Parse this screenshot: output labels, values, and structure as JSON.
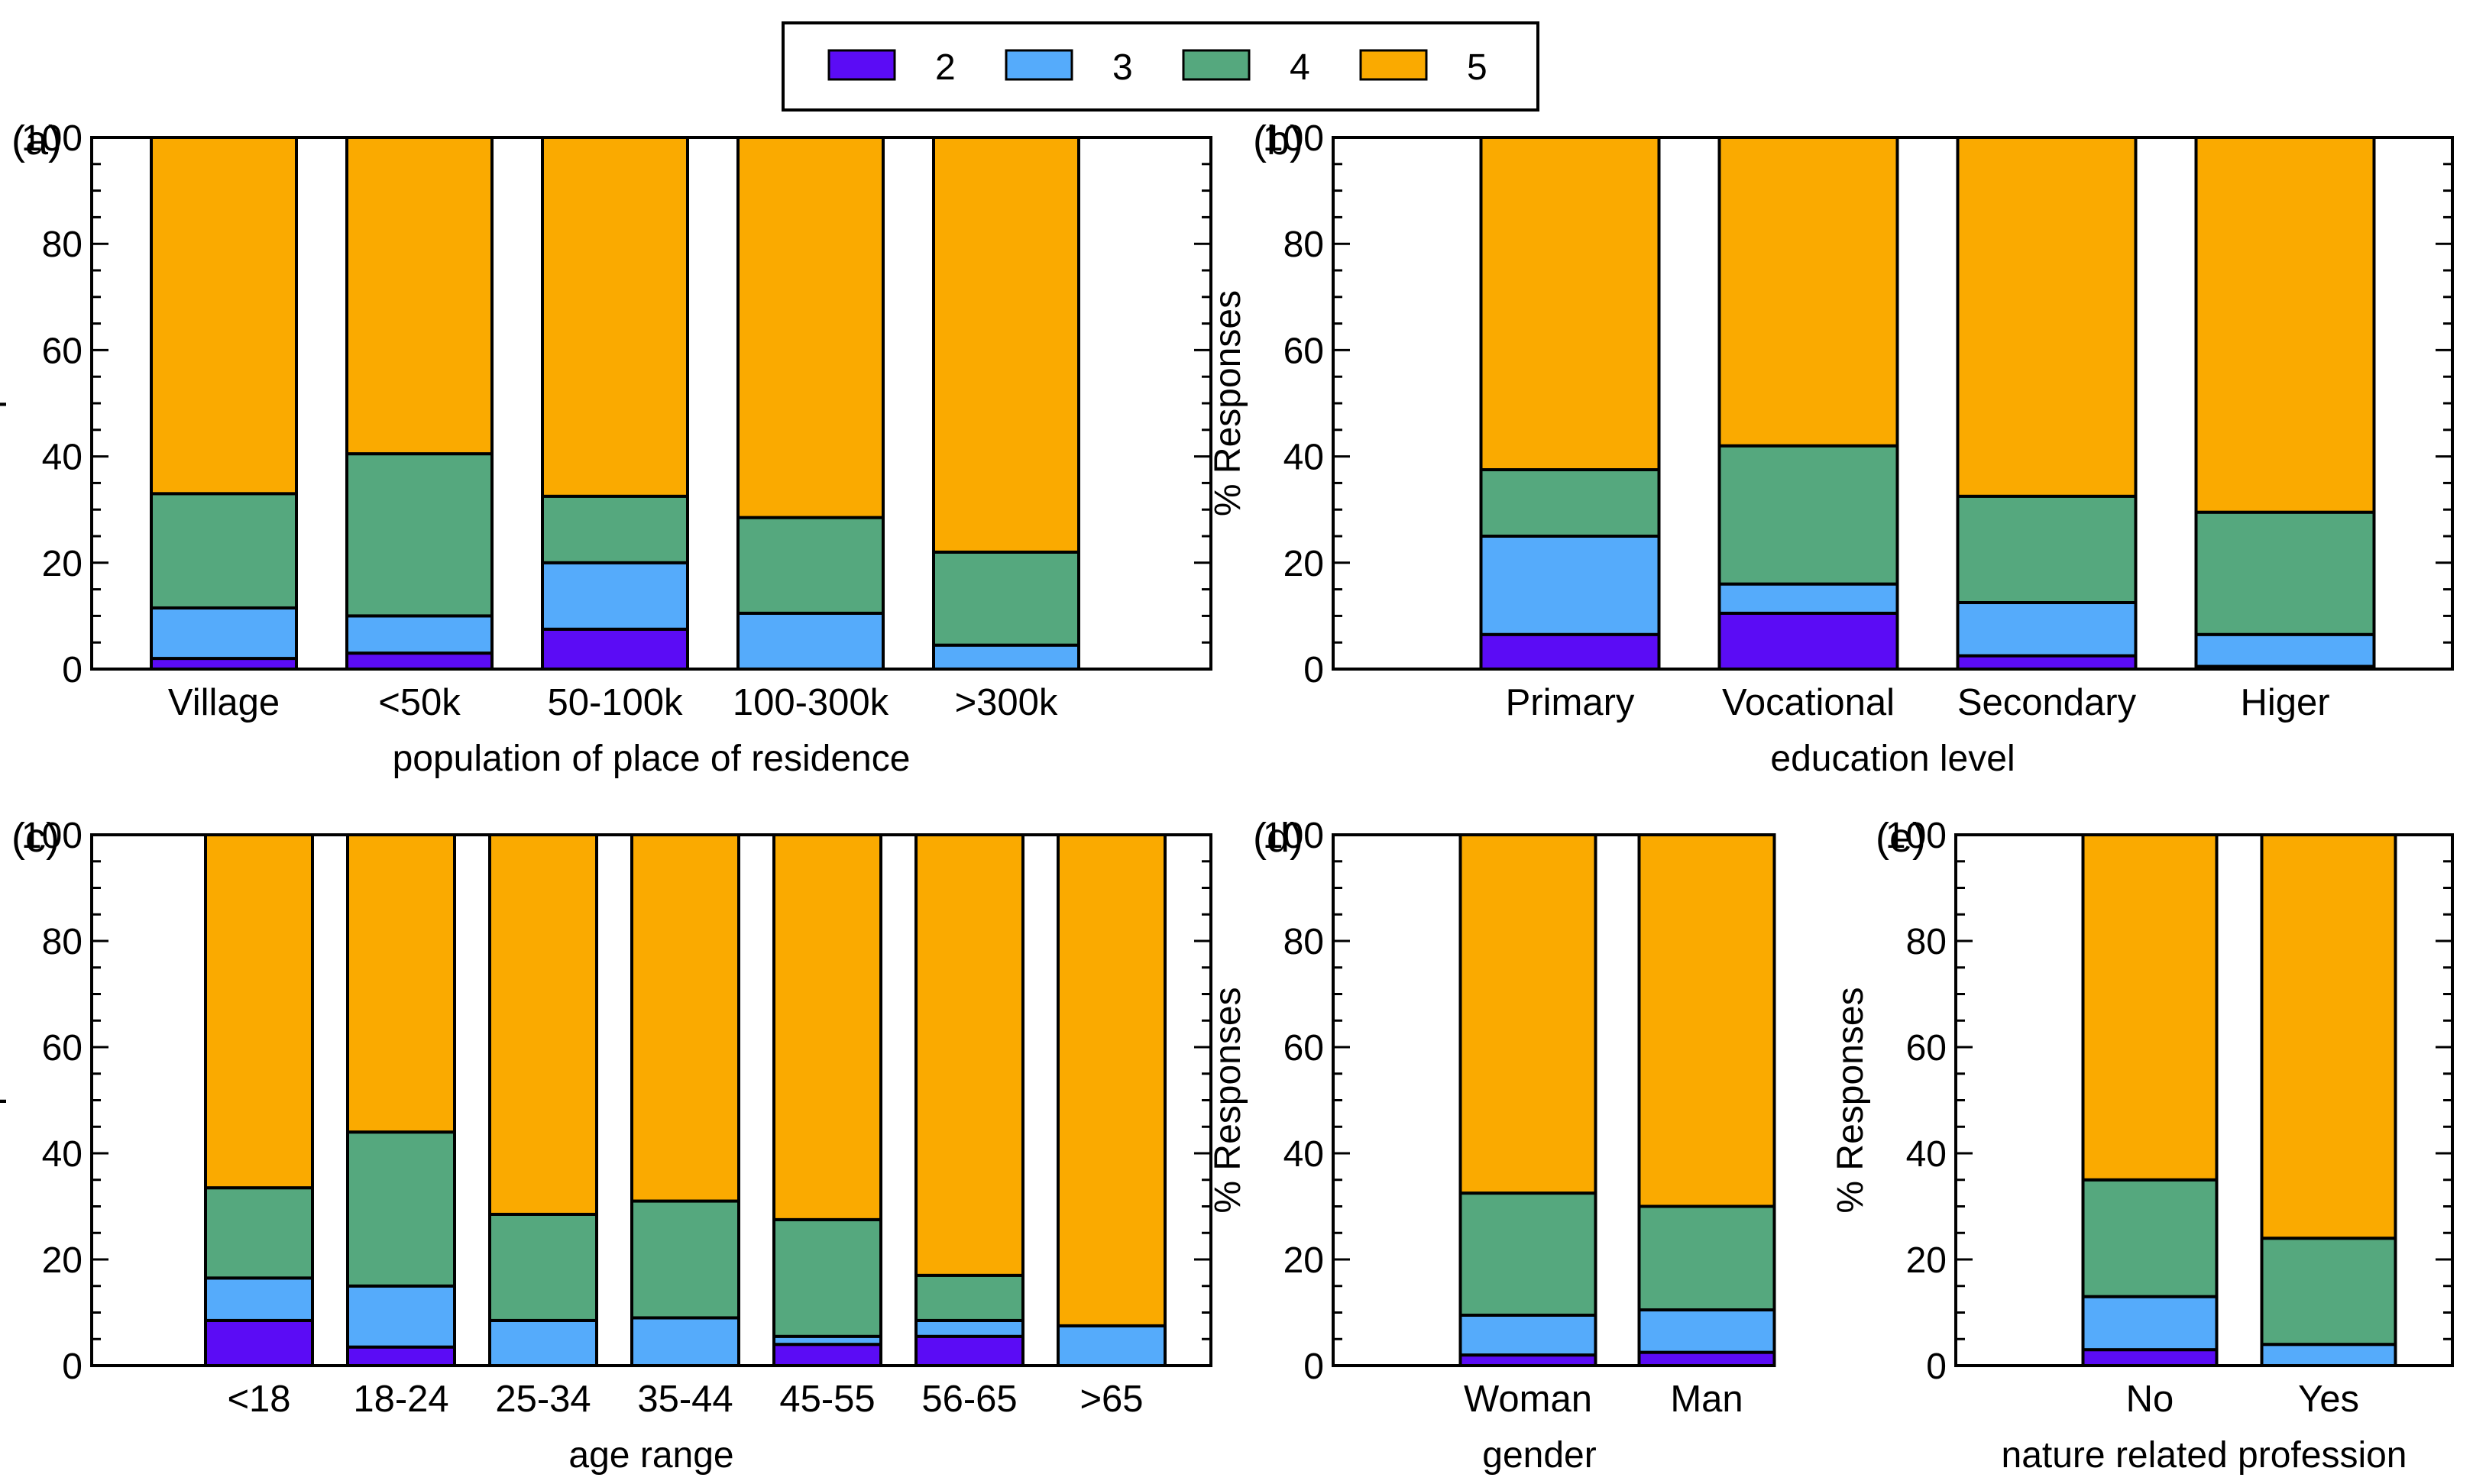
{
  "legend": {
    "items": [
      {
        "label": "2",
        "color": "#5b0cf5"
      },
      {
        "label": "3",
        "color": "#55abfb"
      },
      {
        "label": "4",
        "color": "#55a87e"
      },
      {
        "label": "5",
        "color": "#faaa00"
      }
    ]
  },
  "chart_data": [
    {
      "id": "a",
      "panel_label": "(a)",
      "type": "bar",
      "stacked": true,
      "xlabel": "population of place of residence",
      "ylabel": "% Responses",
      "ylim": [
        0,
        100
      ],
      "yticks": [
        "0",
        "20",
        "40",
        "60",
        "80",
        "100"
      ],
      "categories": [
        "Village",
        "<50k",
        "50-100k",
        "100-300k",
        ">300k"
      ],
      "series": [
        {
          "name": "2",
          "values": [
            2,
            3,
            7.5,
            0,
            0
          ]
        },
        {
          "name": "3",
          "values": [
            9.5,
            7,
            12.5,
            10.5,
            4.5
          ]
        },
        {
          "name": "4",
          "values": [
            21.5,
            30.5,
            12.5,
            18,
            17.5
          ]
        },
        {
          "name": "5",
          "values": [
            67,
            59.5,
            67.5,
            71.5,
            78
          ]
        }
      ]
    },
    {
      "id": "b",
      "panel_label": "(b)",
      "type": "bar",
      "stacked": true,
      "xlabel": "education level",
      "ylabel": "% Responses",
      "ylim": [
        0,
        100
      ],
      "yticks": [
        "0",
        "20",
        "40",
        "60",
        "80",
        "100"
      ],
      "categories": [
        "Primary",
        "Vocational",
        "Secondary",
        "Higer"
      ],
      "series": [
        {
          "name": "2",
          "values": [
            6.5,
            10.5,
            2.5,
            0.5
          ]
        },
        {
          "name": "3",
          "values": [
            18.5,
            5.5,
            10,
            6
          ]
        },
        {
          "name": "4",
          "values": [
            12.5,
            26,
            20,
            23
          ]
        },
        {
          "name": "5",
          "values": [
            62.5,
            58,
            67.5,
            70.5
          ]
        }
      ]
    },
    {
      "id": "c",
      "panel_label": "(c)",
      "type": "bar",
      "stacked": true,
      "xlabel": "age range",
      "ylabel": "% Responses",
      "ylim": [
        0,
        100
      ],
      "yticks": [
        "0",
        "20",
        "40",
        "60",
        "80",
        "100"
      ],
      "categories": [
        "<18",
        "18-24",
        "25-34",
        "35-44",
        "45-55",
        "56-65",
        ">65"
      ],
      "series": [
        {
          "name": "2",
          "values": [
            8.5,
            3.5,
            0,
            0,
            4,
            5.5,
            0
          ]
        },
        {
          "name": "3",
          "values": [
            8,
            11.5,
            8.5,
            9,
            1.5,
            3,
            7.5
          ]
        },
        {
          "name": "4",
          "values": [
            17,
            29,
            20,
            22,
            22,
            8.5,
            0
          ]
        },
        {
          "name": "5",
          "values": [
            66.5,
            56,
            71.5,
            69,
            72.5,
            83,
            92.5
          ]
        }
      ]
    },
    {
      "id": "d",
      "panel_label": "(d)",
      "type": "bar",
      "stacked": true,
      "xlabel": "gender",
      "ylabel": "% Responses",
      "ylim": [
        0,
        100
      ],
      "yticks": [
        "0",
        "20",
        "40",
        "60",
        "80",
        "100"
      ],
      "categories": [
        "Woman",
        "Man"
      ],
      "series": [
        {
          "name": "2",
          "values": [
            2,
            2.5
          ]
        },
        {
          "name": "3",
          "values": [
            7.5,
            8
          ]
        },
        {
          "name": "4",
          "values": [
            23,
            19.5
          ]
        },
        {
          "name": "5",
          "values": [
            67.5,
            70
          ]
        }
      ]
    },
    {
      "id": "e",
      "panel_label": "(e)",
      "type": "bar",
      "stacked": true,
      "xlabel": "nature related profession",
      "ylabel": "% Responses",
      "ylim": [
        0,
        100
      ],
      "yticks": [
        "0",
        "20",
        "40",
        "60",
        "80",
        "100"
      ],
      "categories": [
        "No",
        "Yes"
      ],
      "series": [
        {
          "name": "2",
          "values": [
            3,
            0
          ]
        },
        {
          "name": "3",
          "values": [
            10,
            4
          ]
        },
        {
          "name": "4",
          "values": [
            22,
            20
          ]
        },
        {
          "name": "5",
          "values": [
            65,
            76
          ]
        }
      ]
    }
  ]
}
